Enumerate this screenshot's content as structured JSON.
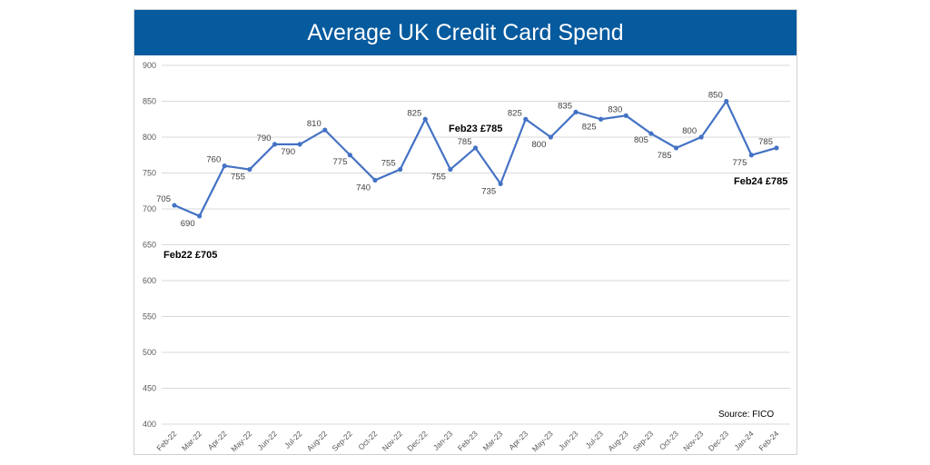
{
  "chart_data": {
    "type": "line",
    "title": "Average UK Credit Card Spend",
    "categories": [
      "Feb-22",
      "Mar-22",
      "Apr-22",
      "May-22",
      "Jun-22",
      "Jul-22",
      "Aug-22",
      "Sep-22",
      "Oct-22",
      "Nov-22",
      "Dec-22",
      "Jan-23",
      "Feb-23",
      "Mar-23",
      "Apr-23",
      "May-23",
      "Jun-23",
      "Jul-23",
      "Aug-23",
      "Sep-23",
      "Oct-23",
      "Nov-23",
      "Dec-23",
      "Jan-24",
      "Feb-24"
    ],
    "series": [
      {
        "values": [
          705,
          690,
          760,
          755,
          790,
          790,
          810,
          775,
          740,
          755,
          825,
          755,
          785,
          735,
          825,
          800,
          835,
          825,
          830,
          805,
          785,
          800,
          850,
          775,
          785
        ]
      }
    ],
    "ylim": [
      400,
      900
    ],
    "yticks": [
      400,
      450,
      500,
      550,
      600,
      650,
      700,
      750,
      800,
      850,
      900
    ],
    "grid": true,
    "line_color": "#4472c4",
    "annotations": [
      {
        "text": "Feb22 £705"
      },
      {
        "text": "Feb23 £785"
      },
      {
        "text": "Feb24 £785"
      }
    ],
    "source": "Source: FICO"
  }
}
